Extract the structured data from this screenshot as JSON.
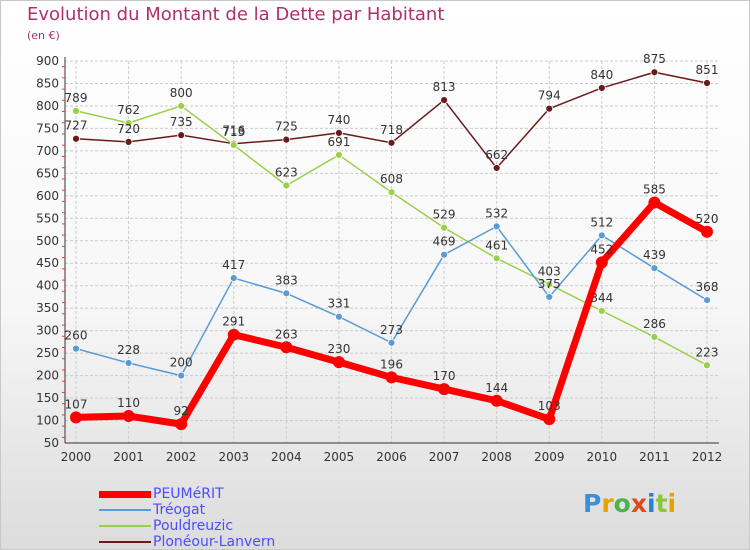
{
  "title": "Evolution du Montant de la Dette par Habitant",
  "subtitle": "(en €)",
  "logo": "Proxiti",
  "chart_data": {
    "type": "line",
    "title": "Evolution du Montant de la Dette par Habitant",
    "subtitle": "(en €)",
    "x": [
      "2000",
      "2001",
      "2002",
      "2003",
      "2004",
      "2005",
      "2006",
      "2007",
      "2008",
      "2009",
      "2010",
      "2011",
      "2012"
    ],
    "yticks": [
      50,
      100,
      150,
      200,
      250,
      300,
      350,
      400,
      450,
      500,
      550,
      600,
      650,
      700,
      750,
      800,
      850,
      900
    ],
    "ylim": [
      50,
      900
    ],
    "grid": true,
    "legend_position": "bottom-left",
    "series": [
      {
        "name": "PEUMéRIT",
        "color": "#ff0000",
        "values": [
          107,
          110,
          92,
          291,
          263,
          230,
          196,
          170,
          144,
          103,
          452,
          585,
          520
        ]
      },
      {
        "name": "Tréogat",
        "color": "#5a9bd5",
        "values": [
          260,
          228,
          200,
          417,
          383,
          331,
          273,
          469,
          532,
          375,
          512,
          439,
          368
        ]
      },
      {
        "name": "Pouldreuzic",
        "color": "#99d04a",
        "values": [
          789,
          762,
          800,
          713,
          623,
          691,
          608,
          529,
          461,
          403,
          344,
          286,
          223
        ]
      },
      {
        "name": "Plonéour-Lanvern",
        "color": "#6b1a1a",
        "values": [
          727,
          720,
          735,
          716,
          725,
          740,
          718,
          813,
          662,
          794,
          840,
          875,
          851
        ]
      }
    ]
  }
}
